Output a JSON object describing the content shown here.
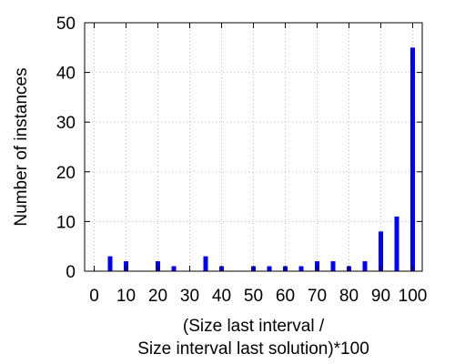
{
  "chart_data": {
    "type": "bar",
    "x": [
      0,
      5,
      10,
      15,
      20,
      25,
      30,
      35,
      40,
      45,
      50,
      55,
      60,
      65,
      70,
      75,
      80,
      85,
      90,
      95,
      100
    ],
    "values": [
      0,
      3,
      2,
      0,
      2,
      1,
      0,
      3,
      1,
      0,
      1,
      1,
      1,
      1,
      2,
      2,
      1,
      2,
      8,
      11,
      45
    ],
    "title": "",
    "xlabel_lines": [
      "(Size last interval /",
      "Size interval last solution)*100"
    ],
    "ylabel": "Number of instances",
    "xlim": [
      -3,
      103
    ],
    "ylim": [
      0,
      50
    ],
    "xticks": [
      0,
      10,
      20,
      30,
      40,
      50,
      60,
      70,
      80,
      90,
      100
    ],
    "yticks": [
      0,
      10,
      20,
      30,
      40,
      50
    ],
    "grid": true,
    "legend": "none",
    "bar_color": "#0000ff"
  }
}
